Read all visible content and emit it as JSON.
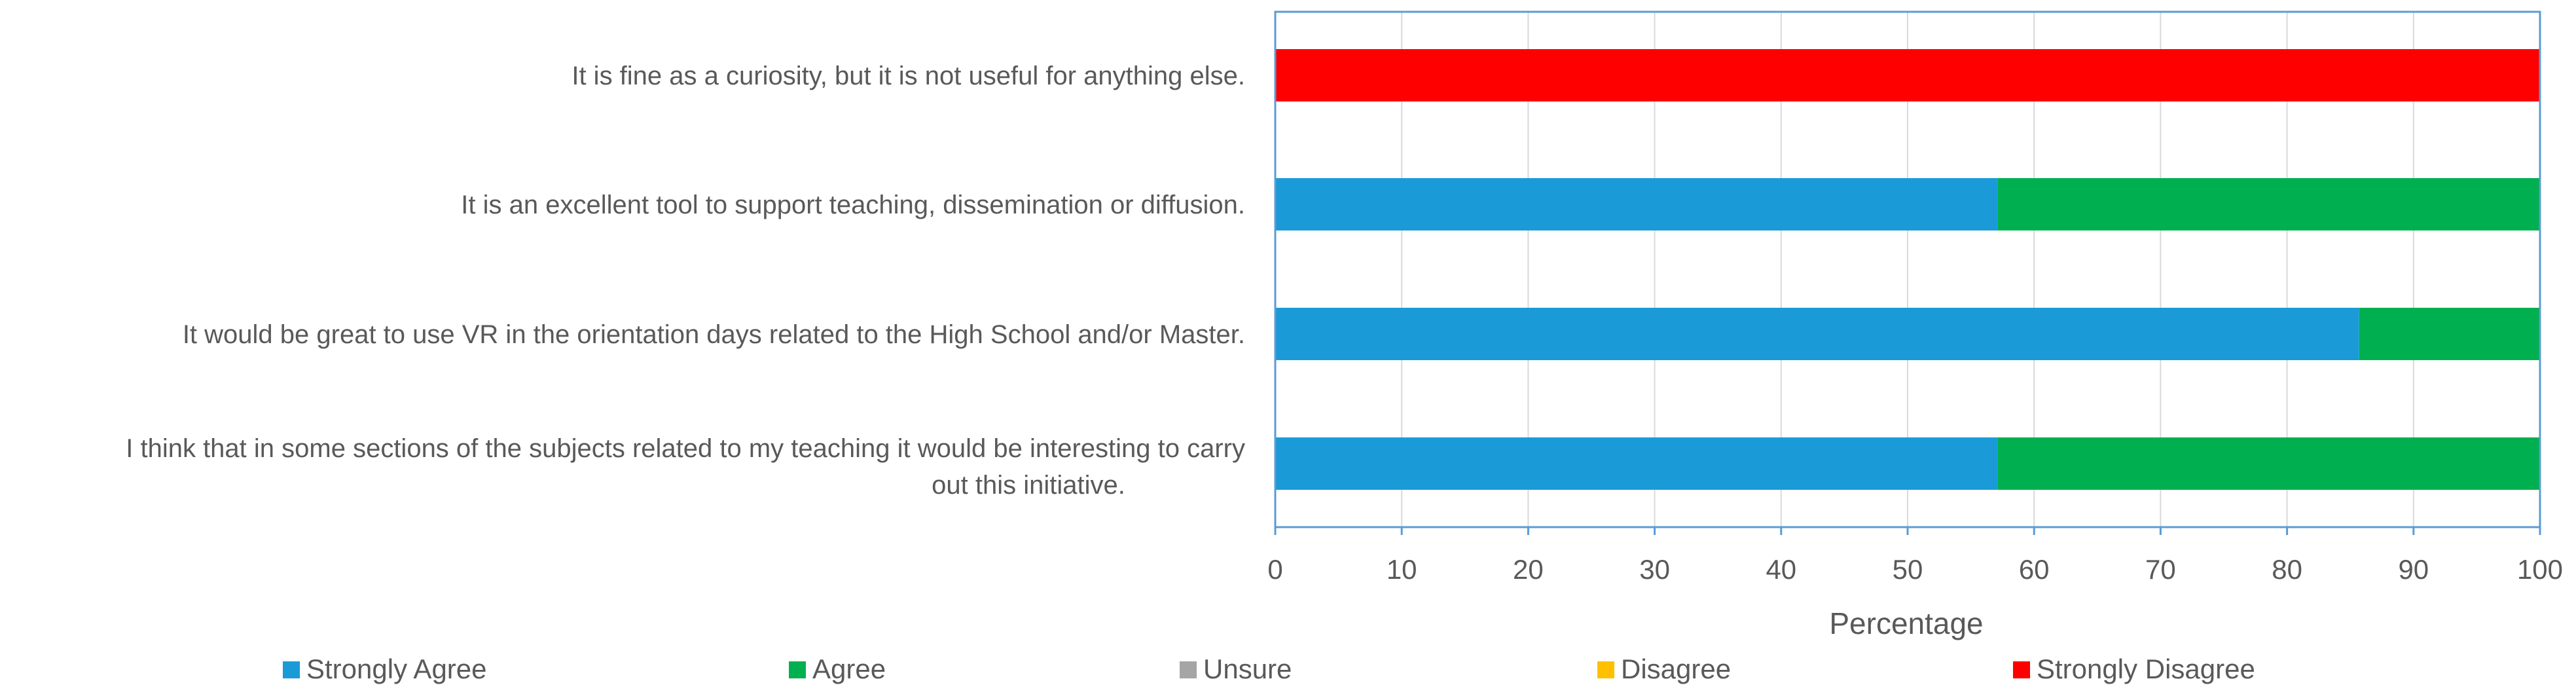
{
  "chart_data": {
    "type": "bar",
    "orientation": "horizontal",
    "stacked": true,
    "categories": [
      "It is fine as a curiosity, but it is not useful for anything else.",
      "It is an excellent tool to support teaching, dissemination or diffusion.",
      "It would be great to use VR in the orientation days related to the High School and/or Master.",
      "I think that in some sections of the subjects related to my teaching it would be interesting to carry out this initiative."
    ],
    "series": [
      {
        "name": "Strongly Agree",
        "color": "#1a9bd7",
        "values": [
          0,
          57.1,
          85.7,
          57.1
        ]
      },
      {
        "name": "Agree",
        "color": "#00b050",
        "values": [
          0,
          42.9,
          14.3,
          42.9
        ]
      },
      {
        "name": "Unsure",
        "color": "#a5a5a5",
        "values": [
          0,
          0,
          0,
          0
        ]
      },
      {
        "name": "Disagree",
        "color": "#ffc000",
        "values": [
          0,
          0,
          0,
          0
        ]
      },
      {
        "name": "Strongly Disagree",
        "color": "#ff0000",
        "values": [
          100,
          0,
          0,
          0
        ]
      }
    ],
    "xlabel": "Percentage",
    "ylabel": "",
    "xlim": [
      0,
      100
    ],
    "xticks": [
      0,
      10,
      20,
      30,
      40,
      50,
      60,
      70,
      80,
      90,
      100
    ],
    "grid": true,
    "legend_position": "bottom"
  }
}
